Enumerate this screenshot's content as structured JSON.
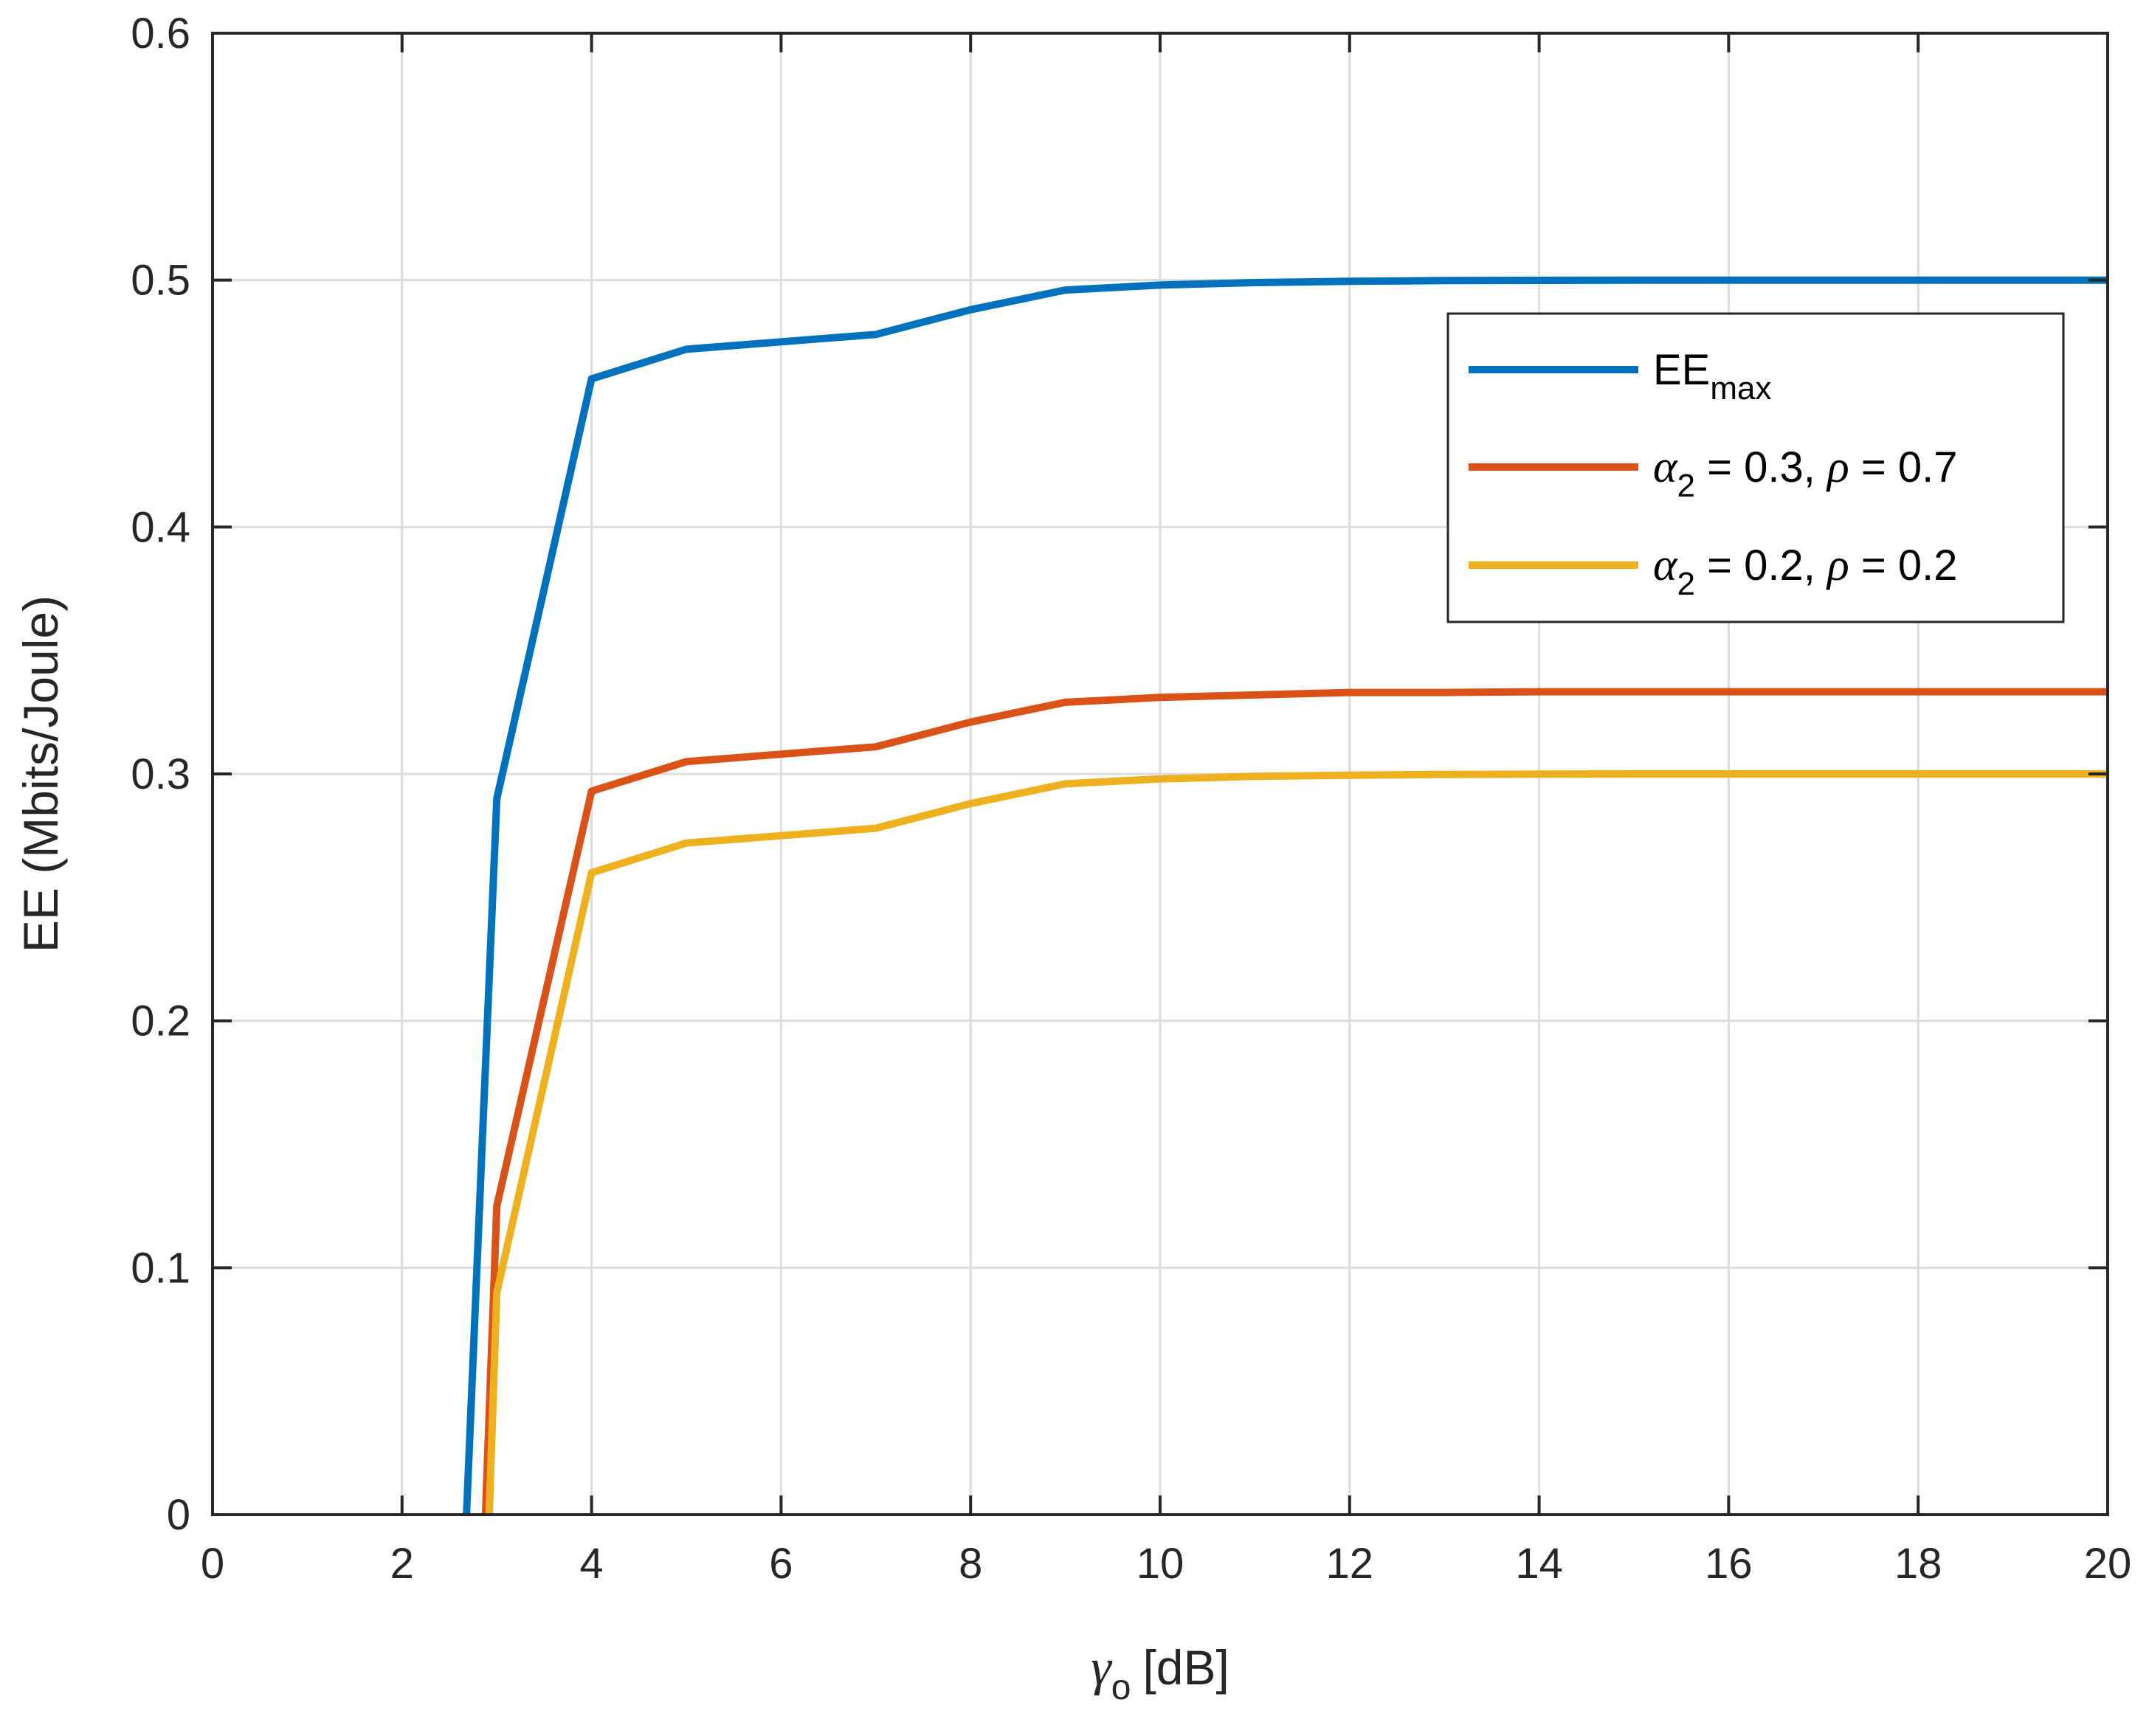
{
  "chart_data": {
    "type": "line",
    "xlabel": {
      "symbol": "γ",
      "subscript": "o",
      "unit": "[dB]"
    },
    "ylabel": "EE (Mbits/Joule)",
    "xlim": [
      0,
      20
    ],
    "ylim": [
      0,
      0.6
    ],
    "xticks": [
      0,
      2,
      4,
      6,
      8,
      10,
      12,
      14,
      16,
      18,
      20
    ],
    "xtick_labels": [
      "0",
      "2",
      "4",
      "6",
      "8",
      "10",
      "12",
      "14",
      "16",
      "18",
      "20"
    ],
    "yticks": [
      0,
      0.1,
      0.2,
      0.3,
      0.4,
      0.5,
      0.6
    ],
    "ytick_labels": [
      "0",
      "0.1",
      "0.2",
      "0.3",
      "0.4",
      "0.5",
      "0.6"
    ],
    "grid": true,
    "legend_position": "top-right",
    "series": [
      {
        "name": "EE_max",
        "legend": {
          "main": "EE",
          "sub": "max"
        },
        "color": "#0072BD",
        "x": [
          2.68,
          3,
          4,
          5,
          6,
          7,
          8,
          9,
          10,
          11,
          12,
          13,
          14,
          15,
          16,
          17,
          18,
          19,
          20
        ],
        "y": [
          0,
          0.29,
          0.46,
          0.472,
          0.475,
          0.478,
          0.488,
          0.496,
          0.498,
          0.499,
          0.4995,
          0.4998,
          0.4999,
          0.5,
          0.5,
          0.5,
          0.5,
          0.5,
          0.5
        ]
      },
      {
        "name": "α2 = 0.3, ρ = 0.7",
        "legend": {
          "a": "α",
          "sub": "2",
          "rest1": " = 0.3, ",
          "b": "ρ",
          "rest2": " = 0.7"
        },
        "color": "#D95319",
        "x": [
          2.88,
          3,
          4,
          5,
          6,
          7,
          8,
          9,
          10,
          11,
          12,
          13,
          14,
          15,
          16,
          17,
          18,
          19,
          20
        ],
        "y": [
          0,
          0.125,
          0.293,
          0.305,
          0.308,
          0.311,
          0.321,
          0.329,
          0.331,
          0.332,
          0.333,
          0.333,
          0.3333,
          0.3333,
          0.3333,
          0.3333,
          0.3333,
          0.3333,
          0.3333
        ]
      },
      {
        "name": "α2 = 0.2, ρ = 0.2",
        "legend": {
          "a": "α",
          "sub": "2",
          "rest1": " = 0.2, ",
          "b": "ρ",
          "rest2": " = 0.2"
        },
        "color": "#EDB120",
        "x": [
          2.92,
          3,
          4,
          5,
          6,
          7,
          8,
          9,
          10,
          11,
          12,
          13,
          14,
          15,
          16,
          17,
          18,
          19,
          20
        ],
        "y": [
          0,
          0.09,
          0.26,
          0.272,
          0.275,
          0.278,
          0.288,
          0.296,
          0.298,
          0.299,
          0.2995,
          0.2998,
          0.2999,
          0.3,
          0.3,
          0.3,
          0.3,
          0.3,
          0.3
        ]
      }
    ]
  }
}
